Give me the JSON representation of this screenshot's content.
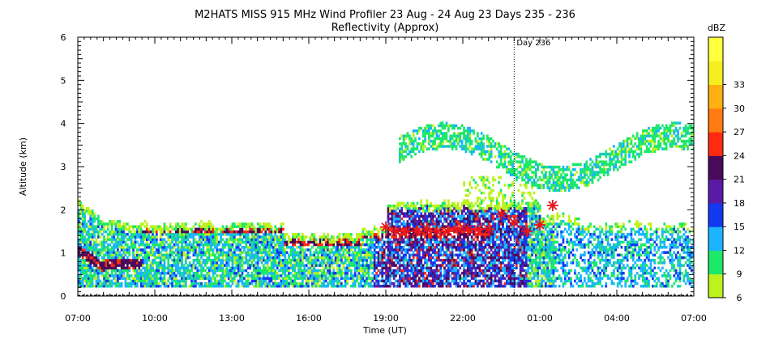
{
  "chart_data": {
    "type": "heatmap",
    "title": "M2HATS MISS 915 MHz Wind Profiler  23 Aug - 24 Aug 23 Days 235 - 236",
    "subtitle": "Reflectivity (Approx)",
    "xlabel": "Time (UT)",
    "ylabel": "Altitude (km)",
    "xlim": [
      0,
      24
    ],
    "ylim": [
      0,
      6
    ],
    "x_tick_labels": [
      "07:00",
      "10:00",
      "13:00",
      "16:00",
      "19:00",
      "22:00",
      "01:00",
      "04:00",
      "07:00"
    ],
    "y_tick_labels": [
      "0",
      "1",
      "2",
      "3",
      "4",
      "5",
      "6"
    ],
    "annotation": {
      "text": "Day 236",
      "x_hours_from_start": 17
    },
    "colorbar": {
      "label": "dBZ",
      "tick_labels": [
        "6",
        "9",
        "12",
        "15",
        "18",
        "21",
        "24",
        "27",
        "30",
        "33"
      ],
      "colors": [
        "#bdf21c",
        "#1de86a",
        "#1ab4ff",
        "#1238f0",
        "#5a1aa8",
        "#4a0a5a",
        "#ff2a10",
        "#ff7a10",
        "#ffb010",
        "#f5ee20",
        "#ffff40"
      ]
    },
    "markers": {
      "color": "#e8141c",
      "points": [
        {
          "x": 12.0,
          "y": 1.6
        },
        {
          "x": 12.4,
          "y": 1.5
        },
        {
          "x": 12.8,
          "y": 1.5
        },
        {
          "x": 13.2,
          "y": 1.5
        },
        {
          "x": 13.6,
          "y": 1.55
        },
        {
          "x": 14.0,
          "y": 1.5
        },
        {
          "x": 14.4,
          "y": 1.5
        },
        {
          "x": 14.8,
          "y": 1.55
        },
        {
          "x": 15.2,
          "y": 1.55
        },
        {
          "x": 15.6,
          "y": 1.55
        },
        {
          "x": 16.0,
          "y": 1.55
        },
        {
          "x": 16.5,
          "y": 1.9
        },
        {
          "x": 17.0,
          "y": 1.7
        },
        {
          "x": 17.5,
          "y": 1.5
        },
        {
          "x": 18.0,
          "y": 1.65
        },
        {
          "x": 18.5,
          "y": 2.1
        }
      ]
    },
    "layers": [
      {
        "name": "",
        "description": "",
        "height_km": []
      }
    ]
  }
}
